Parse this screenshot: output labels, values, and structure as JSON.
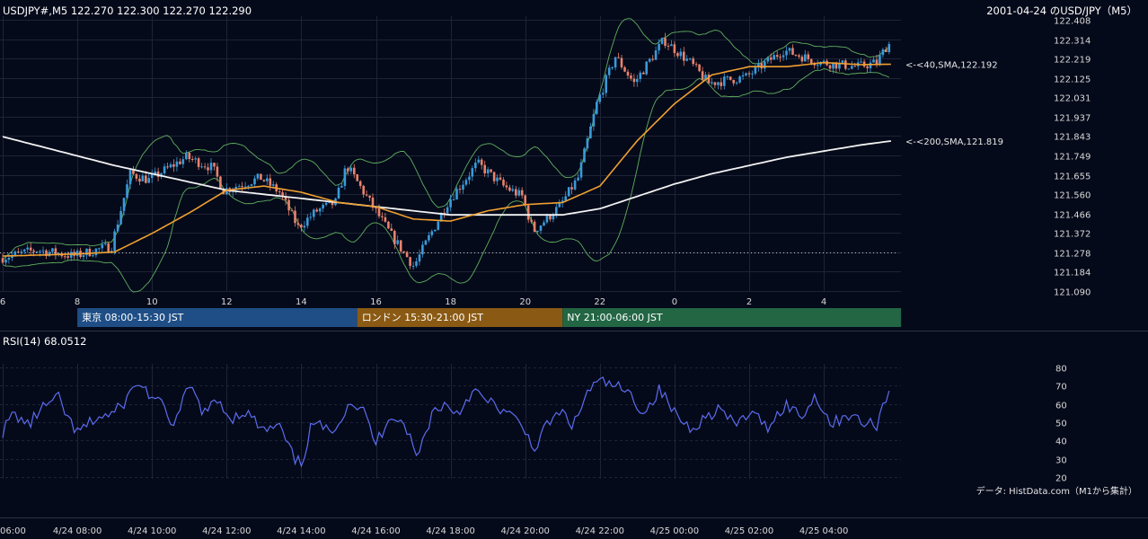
{
  "header": {
    "left": "USDJPY#,M5 122.270 122.300 122.270 122.290",
    "right": "2001-04-24 のUSD/JPY（M5）"
  },
  "colors": {
    "background": "#050a1a",
    "bull": "#3a9ad9",
    "bear": "#e8826c",
    "sma40": "#f0a030",
    "sma200": "#f2f2f2",
    "bollinger": "#5fae5f",
    "rsi": "#5b6cf0",
    "grid": "#1d2436",
    "tokyo": "#1f4e86",
    "london": "#8a5a14",
    "ny": "#226644"
  },
  "chart_data": [
    {
      "type": "candlestick",
      "title": "USDJPY#,M5",
      "y_ticks": [
        "122.408",
        "122.314",
        "122.219",
        "122.125",
        "122.031",
        "121.937",
        "121.843",
        "121.749",
        "121.655",
        "121.560",
        "121.466",
        "121.372",
        "121.278",
        "121.184",
        "121.090"
      ],
      "ylim": [
        121.09,
        122.408
      ],
      "x_hour_ticks": [
        "6",
        "8",
        "10",
        "12",
        "14",
        "16",
        "18",
        "20",
        "22",
        "0",
        "2",
        "4"
      ],
      "reference_line": 121.278,
      "key_points": [
        {
          "hour": 6.0,
          "price": 121.25
        },
        {
          "hour": 7.0,
          "price": 121.29
        },
        {
          "hour": 8.0,
          "price": 121.26
        },
        {
          "hour": 9.0,
          "price": 121.31
        },
        {
          "hour": 9.5,
          "price": 121.66
        },
        {
          "hour": 10.0,
          "price": 121.63
        },
        {
          "hour": 11.0,
          "price": 121.74
        },
        {
          "hour": 11.7,
          "price": 121.69
        },
        {
          "hour": 12.0,
          "price": 121.58
        },
        {
          "hour": 13.0,
          "price": 121.64
        },
        {
          "hour": 13.5,
          "price": 121.57
        },
        {
          "hour": 14.0,
          "price": 121.4
        },
        {
          "hour": 14.5,
          "price": 121.48
        },
        {
          "hour": 15.0,
          "price": 121.52
        },
        {
          "hour": 15.3,
          "price": 121.7
        },
        {
          "hour": 16.0,
          "price": 121.5
        },
        {
          "hour": 16.5,
          "price": 121.36
        },
        {
          "hour": 17.1,
          "price": 121.21
        },
        {
          "hour": 17.5,
          "price": 121.35
        },
        {
          "hour": 18.0,
          "price": 121.52
        },
        {
          "hour": 18.8,
          "price": 121.71
        },
        {
          "hour": 19.5,
          "price": 121.6
        },
        {
          "hour": 20.0,
          "price": 121.55
        },
        {
          "hour": 20.3,
          "price": 121.38
        },
        {
          "hour": 21.0,
          "price": 121.5
        },
        {
          "hour": 21.5,
          "price": 121.64
        },
        {
          "hour": 22.0,
          "price": 122.0
        },
        {
          "hour": 22.5,
          "price": 122.23
        },
        {
          "hour": 23.0,
          "price": 122.1
        },
        {
          "hour": 23.8,
          "price": 122.31
        },
        {
          "hour": 24.5,
          "price": 122.2
        },
        {
          "hour": 25.0,
          "price": 122.1
        },
        {
          "hour": 26.0,
          "price": 122.13
        },
        {
          "hour": 27.0,
          "price": 122.26
        },
        {
          "hour": 28.0,
          "price": 122.2
        },
        {
          "hour": 29.0,
          "price": 122.18
        },
        {
          "hour": 29.5,
          "price": 122.2
        },
        {
          "hour": 29.8,
          "price": 122.29
        }
      ],
      "series": [
        {
          "name": "40,SMA",
          "label": "<-<40,SMA,122.192",
          "last": 122.192,
          "points": [
            [
              6,
              121.26
            ],
            [
              8,
              121.27
            ],
            [
              9,
              121.28
            ],
            [
              10,
              121.37
            ],
            [
              11,
              121.47
            ],
            [
              12,
              121.58
            ],
            [
              13,
              121.6
            ],
            [
              14,
              121.57
            ],
            [
              15,
              121.52
            ],
            [
              16,
              121.5
            ],
            [
              17,
              121.44
            ],
            [
              18,
              121.43
            ],
            [
              19,
              121.48
            ],
            [
              20,
              121.51
            ],
            [
              21,
              121.52
            ],
            [
              22,
              121.6
            ],
            [
              23,
              121.82
            ],
            [
              24,
              122.0
            ],
            [
              25,
              122.14
            ],
            [
              26,
              122.18
            ],
            [
              27,
              122.18
            ],
            [
              28,
              122.2
            ],
            [
              29,
              122.19
            ],
            [
              29.8,
              122.192
            ]
          ]
        },
        {
          "name": "200,SMA",
          "label": "<-<200,SMA,121.819",
          "last": 121.819,
          "points": [
            [
              6,
              121.84
            ],
            [
              9,
              121.7
            ],
            [
              12,
              121.58
            ],
            [
              15,
              121.52
            ],
            [
              18,
              121.46
            ],
            [
              21,
              121.46
            ],
            [
              22,
              121.49
            ],
            [
              23,
              121.55
            ],
            [
              24,
              121.61
            ],
            [
              25,
              121.66
            ],
            [
              26,
              121.7
            ],
            [
              27,
              121.74
            ],
            [
              28,
              121.77
            ],
            [
              29,
              121.8
            ],
            [
              29.8,
              121.819
            ]
          ]
        }
      ]
    },
    {
      "type": "line",
      "title": "RSI(14) 68.0512",
      "y_ticks": [
        "80",
        "70",
        "60",
        "50",
        "40",
        "30",
        "20"
      ],
      "ylim": [
        20,
        80
      ],
      "last": 68.0512,
      "key_points": [
        [
          6.0,
          45
        ],
        [
          6.3,
          55
        ],
        [
          6.7,
          48
        ],
        [
          7.0,
          57
        ],
        [
          7.5,
          63
        ],
        [
          7.8,
          50
        ],
        [
          8.0,
          44
        ],
        [
          8.5,
          52
        ],
        [
          9.0,
          55
        ],
        [
          9.3,
          62
        ],
        [
          9.6,
          72
        ],
        [
          9.9,
          66
        ],
        [
          10.3,
          58
        ],
        [
          10.6,
          48
        ],
        [
          11.0,
          70
        ],
        [
          11.4,
          55
        ],
        [
          11.8,
          62
        ],
        [
          12.1,
          52
        ],
        [
          12.5,
          56
        ],
        [
          13.0,
          45
        ],
        [
          13.4,
          48
        ],
        [
          13.8,
          30
        ],
        [
          14.0,
          27
        ],
        [
          14.3,
          50
        ],
        [
          14.7,
          45
        ],
        [
          15.0,
          50
        ],
        [
          15.3,
          62
        ],
        [
          15.7,
          55
        ],
        [
          16.0,
          38
        ],
        [
          16.4,
          55
        ],
        [
          16.8,
          48
        ],
        [
          17.1,
          30
        ],
        [
          17.5,
          55
        ],
        [
          17.8,
          60
        ],
        [
          18.2,
          55
        ],
        [
          18.6,
          68
        ],
        [
          18.9,
          62
        ],
        [
          19.3,
          58
        ],
        [
          19.7,
          52
        ],
        [
          20.0,
          45
        ],
        [
          20.3,
          35
        ],
        [
          20.6,
          50
        ],
        [
          21.0,
          55
        ],
        [
          21.3,
          48
        ],
        [
          21.7,
          68
        ],
        [
          22.0,
          72
        ],
        [
          22.4,
          70
        ],
        [
          22.8,
          65
        ],
        [
          23.2,
          55
        ],
        [
          23.6,
          68
        ],
        [
          24.0,
          55
        ],
        [
          24.4,
          47
        ],
        [
          24.8,
          52
        ],
        [
          25.2,
          58
        ],
        [
          25.6,
          48
        ],
        [
          26.0,
          55
        ],
        [
          26.5,
          48
        ],
        [
          27.0,
          60
        ],
        [
          27.4,
          53
        ],
        [
          27.8,
          65
        ],
        [
          28.2,
          48
        ],
        [
          28.6,
          55
        ],
        [
          29.0,
          50
        ],
        [
          29.4,
          48
        ],
        [
          29.6,
          60
        ],
        [
          29.8,
          68.05
        ]
      ]
    },
    {
      "type": "sessions",
      "sessions": [
        {
          "label": "東京 08:00-15:30 JST",
          "start": 8.0,
          "end": 15.5
        },
        {
          "label": "ロンドン 15:30-21:00 JST",
          "start": 15.5,
          "end": 21.0
        },
        {
          "label": "NY 21:00-06:00 JST",
          "start": 21.0,
          "end": 30.0
        }
      ]
    },
    {
      "type": "time_axis",
      "ticks": [
        "06:00",
        "4/24 08:00",
        "4/24 10:00",
        "4/24 12:00",
        "4/24 14:00",
        "4/24 16:00",
        "4/24 18:00",
        "4/24 20:00",
        "4/24 22:00",
        "4/25 00:00",
        "4/25 02:00",
        "4/25 04:00"
      ]
    }
  ],
  "footer": {
    "credit": "データ: HistData.com（M1から集計）"
  }
}
